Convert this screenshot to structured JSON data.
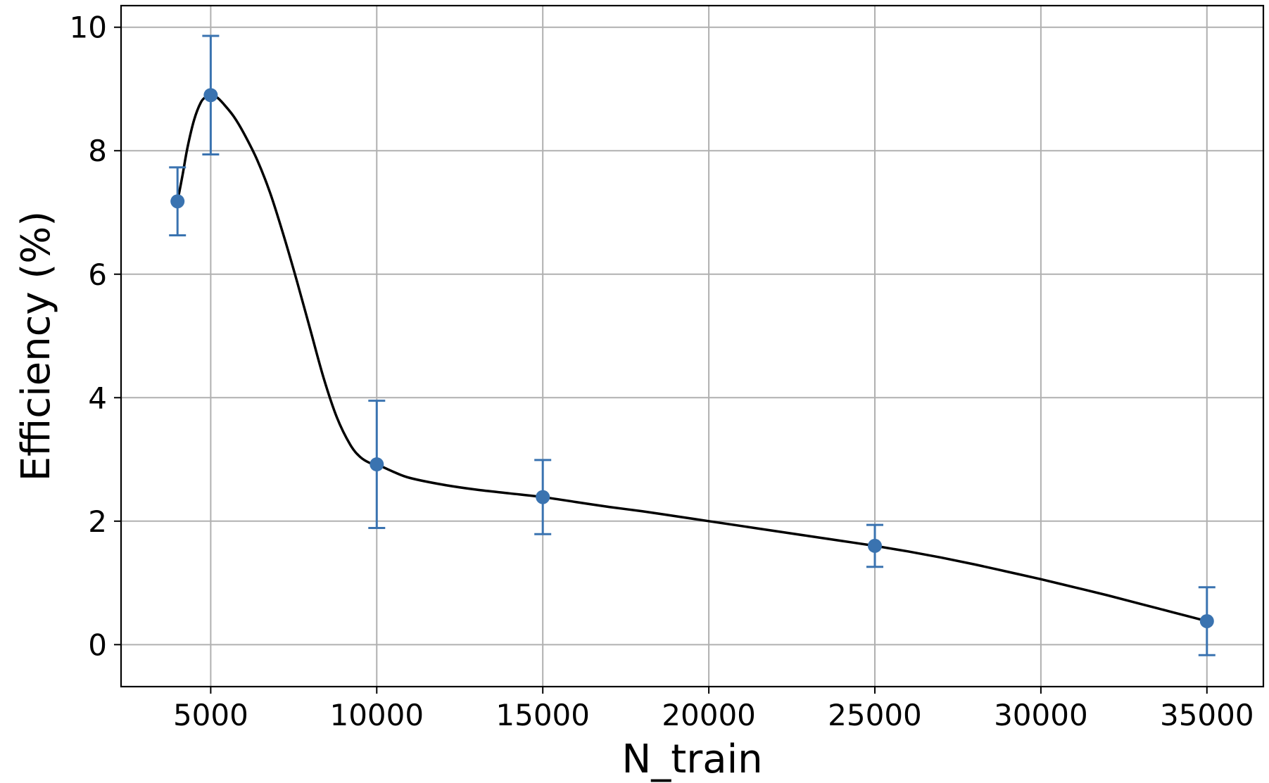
{
  "chart_data": {
    "type": "line",
    "title": "",
    "xlabel": "N_train",
    "ylabel": "Efficiency (%)",
    "xlim": [
      2300,
      36700
    ],
    "ylim": [
      -0.68,
      10.35
    ],
    "xticks": [
      5000,
      10000,
      15000,
      20000,
      25000,
      30000,
      35000
    ],
    "xtick_labels": [
      "5000",
      "10000",
      "15000",
      "20000",
      "25000",
      "30000",
      "35000"
    ],
    "yticks": [
      0,
      2,
      4,
      6,
      8,
      10
    ],
    "ytick_labels": [
      "0",
      "2",
      "4",
      "6",
      "8",
      "10"
    ],
    "grid": true,
    "legend": "none",
    "series": [
      {
        "kind": "errorbar",
        "color": "#3a73b0",
        "marker": "circle",
        "x": [
          4000,
          5000,
          10000,
          15000,
          25000,
          35000
        ],
        "y": [
          7.18,
          8.9,
          2.92,
          2.39,
          1.6,
          0.38
        ],
        "yerr_lower": [
          0.55,
          0.96,
          1.03,
          0.6,
          0.34,
          0.55
        ],
        "yerr_upper": [
          0.55,
          0.96,
          1.03,
          0.6,
          0.34,
          0.55
        ]
      },
      {
        "kind": "smooth-fit",
        "color": "#000000",
        "x": [
          4000,
          4150,
          4300,
          4500,
          4700,
          4850,
          5000,
          5200,
          5400,
          5700,
          6000,
          6400,
          6800,
          7200,
          7600,
          8000,
          8400,
          8800,
          9200,
          9500,
          9800,
          10000,
          10500,
          11000,
          12000,
          13000,
          14000,
          15000,
          16000,
          17000,
          18000,
          19000,
          20000,
          21000,
          22000,
          23000,
          24000,
          25000,
          26000,
          27000,
          28000,
          29000,
          30000,
          31000,
          32000,
          33000,
          34000,
          35000
        ],
        "y": [
          7.18,
          7.6,
          8.05,
          8.5,
          8.78,
          8.87,
          8.9,
          8.86,
          8.75,
          8.55,
          8.28,
          7.85,
          7.3,
          6.62,
          5.88,
          5.1,
          4.32,
          3.68,
          3.24,
          3.04,
          2.94,
          2.92,
          2.8,
          2.7,
          2.59,
          2.51,
          2.45,
          2.39,
          2.31,
          2.23,
          2.16,
          2.08,
          2.0,
          1.92,
          1.84,
          1.76,
          1.68,
          1.6,
          1.51,
          1.41,
          1.3,
          1.18,
          1.06,
          0.93,
          0.8,
          0.66,
          0.52,
          0.38
        ]
      }
    ]
  }
}
